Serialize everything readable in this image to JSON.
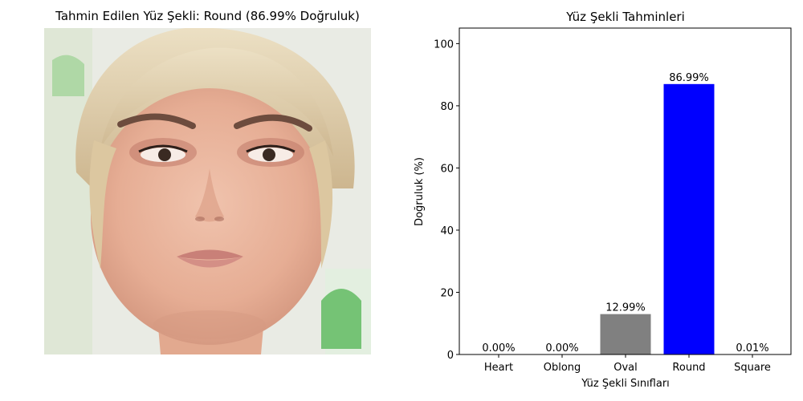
{
  "left_panel": {
    "title": "Tahmin Edilen Yüz Şekli: Round (86.99% Doğruluk)"
  },
  "chart_data": {
    "type": "bar",
    "title": "Yüz Şekli Tahminleri",
    "xlabel": "Yüz Şekli Sınıfları",
    "ylabel": "Doğruluk (%)",
    "categories": [
      "Heart",
      "Oblong",
      "Oval",
      "Round",
      "Square"
    ],
    "values": [
      0.0,
      0.0,
      12.99,
      86.99,
      0.01
    ],
    "value_labels": [
      "0.00%",
      "0.00%",
      "12.99%",
      "86.99%",
      "0.01%"
    ],
    "colors": [
      "#808080",
      "#808080",
      "#808080",
      "#0000ff",
      "#808080"
    ],
    "ylim": [
      0,
      105
    ],
    "yticks": [
      0,
      20,
      40,
      60,
      80,
      100
    ],
    "grid": false,
    "legend": "none"
  }
}
